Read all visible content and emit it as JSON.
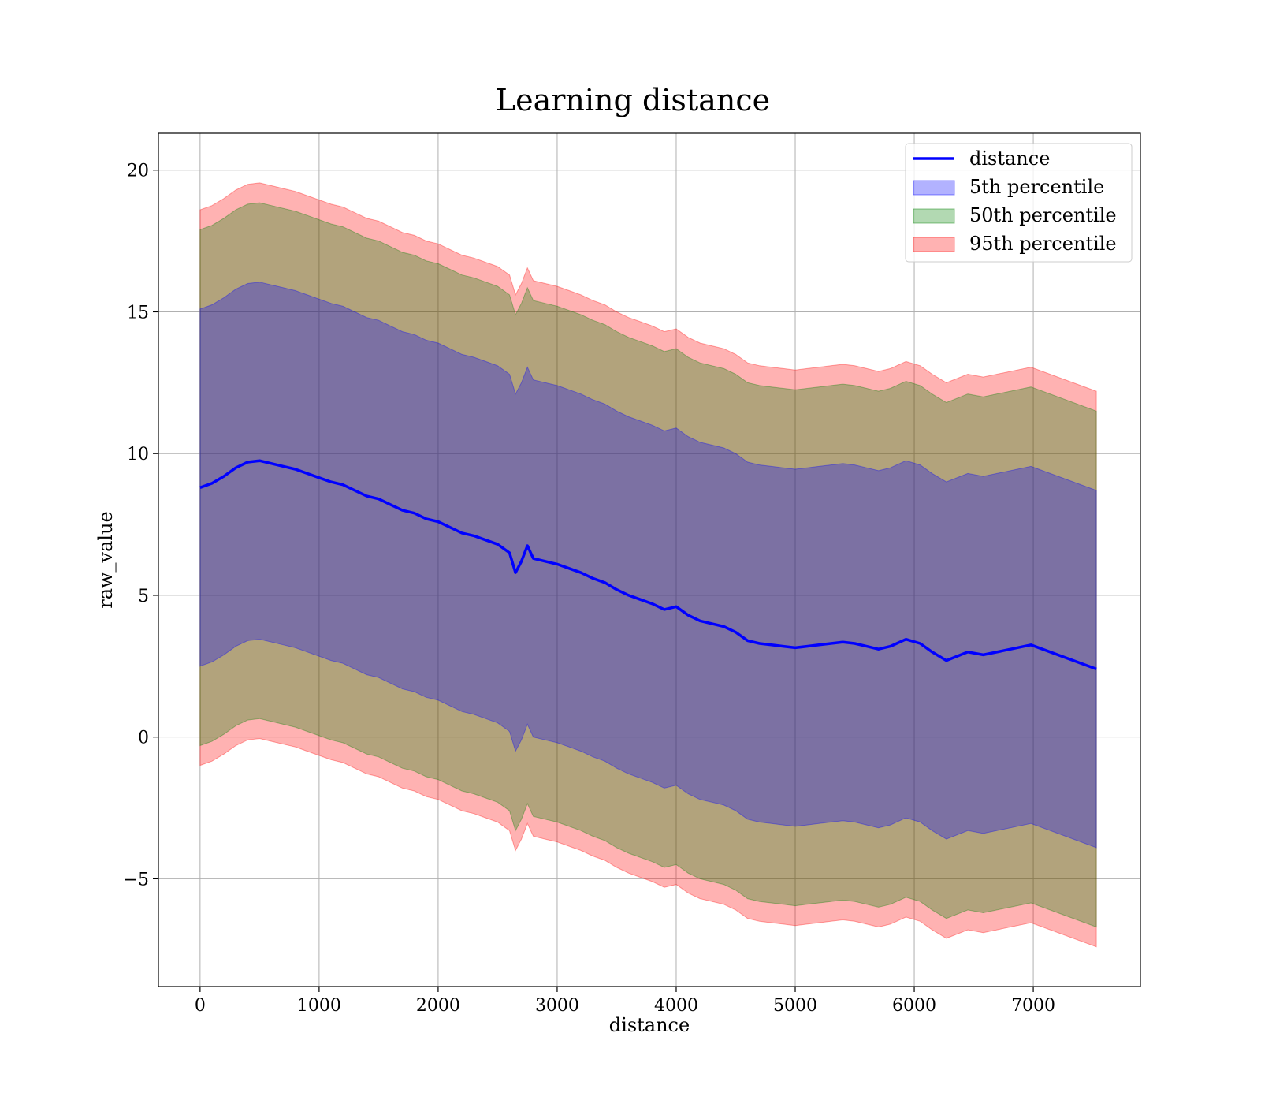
{
  "chart_data": {
    "type": "line",
    "title": "Learning distance",
    "xlabel": "distance",
    "ylabel": "raw_value",
    "xlim": [
      -350,
      7900
    ],
    "ylim": [
      -8.8,
      21.3
    ],
    "x_ticks": [
      0,
      1000,
      2000,
      3000,
      4000,
      5000,
      6000,
      7000
    ],
    "y_ticks": [
      -5,
      0,
      5,
      10,
      15,
      20
    ],
    "x_tick_labels": [
      "0",
      "1000",
      "2000",
      "3000",
      "4000",
      "5000",
      "6000",
      "7000"
    ],
    "y_tick_labels": [
      "−5",
      "0",
      "5",
      "10",
      "15",
      "20"
    ],
    "grid": true,
    "legend_position": "top-right",
    "x": [
      0,
      100,
      200,
      300,
      400,
      500,
      600,
      700,
      800,
      900,
      1000,
      1100,
      1200,
      1300,
      1400,
      1500,
      1600,
      1700,
      1800,
      1900,
      2000,
      2100,
      2200,
      2300,
      2400,
      2500,
      2600,
      2650,
      2700,
      2750,
      2800,
      2900,
      3000,
      3100,
      3200,
      3300,
      3400,
      3500,
      3600,
      3700,
      3800,
      3900,
      4000,
      4100,
      4200,
      4300,
      4400,
      4500,
      4600,
      4700,
      4800,
      4900,
      5000,
      5100,
      5200,
      5300,
      5400,
      5500,
      5600,
      5700,
      5800,
      5930,
      6050,
      6150,
      6270,
      6450,
      6580,
      6980,
      7530
    ],
    "series": [
      {
        "name": "distance",
        "kind": "line",
        "color": "#0000ff",
        "values": [
          8.8,
          8.95,
          9.2,
          9.5,
          9.7,
          9.75,
          9.65,
          9.55,
          9.45,
          9.3,
          9.15,
          9.0,
          8.9,
          8.7,
          8.5,
          8.4,
          8.2,
          8.0,
          7.9,
          7.7,
          7.6,
          7.4,
          7.2,
          7.1,
          6.95,
          6.8,
          6.5,
          5.8,
          6.2,
          6.75,
          6.3,
          6.2,
          6.1,
          5.95,
          5.8,
          5.6,
          5.45,
          5.2,
          5.0,
          4.85,
          4.7,
          4.5,
          4.6,
          4.3,
          4.1,
          4.0,
          3.9,
          3.7,
          3.4,
          3.3,
          3.25,
          3.2,
          3.15,
          3.2,
          3.25,
          3.3,
          3.35,
          3.3,
          3.2,
          3.1,
          3.2,
          3.45,
          3.3,
          3.0,
          2.7,
          3.0,
          2.9,
          3.25,
          2.4
        ]
      },
      {
        "name": "95th percentile",
        "kind": "band",
        "color": "#ff0000",
        "offset": 9.8
      },
      {
        "name": "50th percentile",
        "kind": "band",
        "color": "#008000",
        "offset": 9.1
      },
      {
        "name": "5th percentile",
        "kind": "band",
        "color": "#0000ff",
        "offset": 6.3
      }
    ],
    "legend": [
      "distance",
      "5th percentile",
      "50th percentile",
      "95th percentile"
    ]
  }
}
